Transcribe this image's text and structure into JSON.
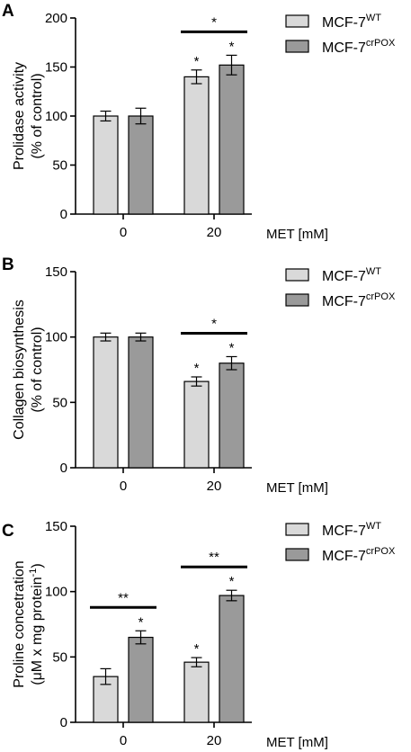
{
  "colors": {
    "wt": "#d9d9d9",
    "pox": "#9a9a9a",
    "edge": "#000000"
  },
  "chart_data": [
    {
      "type": "bar",
      "panel": "A",
      "ylabel": [
        "Prolidase activity",
        "(% of control)"
      ],
      "xlabel": "MET [mM]",
      "categories": [
        "0",
        "20"
      ],
      "ylim": [
        0,
        200
      ],
      "yticks": [
        0,
        50,
        100,
        150,
        200
      ],
      "series": [
        {
          "name": "MCF-7",
          "sup": "WT",
          "values": [
            100,
            140
          ],
          "errors": [
            5,
            7
          ],
          "stars": [
            "",
            "*"
          ]
        },
        {
          "name": "MCF-7",
          "sup": "crPOX",
          "values": [
            100,
            152
          ],
          "errors": [
            8,
            10
          ],
          "stars": [
            "",
            "*"
          ]
        }
      ],
      "brackets": [
        {
          "group": 1,
          "label": "*"
        }
      ]
    },
    {
      "type": "bar",
      "panel": "B",
      "ylabel": [
        "Collagen biosynthesis",
        "(% of control)"
      ],
      "xlabel": "MET [mM]",
      "categories": [
        "0",
        "20"
      ],
      "ylim": [
        0,
        150
      ],
      "yticks": [
        0,
        50,
        100,
        150
      ],
      "series": [
        {
          "name": "MCF-7",
          "sup": "WT",
          "values": [
            100,
            66
          ],
          "errors": [
            3,
            3.5
          ],
          "stars": [
            "",
            "*"
          ]
        },
        {
          "name": "MCF-7",
          "sup": "crPOX",
          "values": [
            100,
            80
          ],
          "errors": [
            3,
            5
          ],
          "stars": [
            "",
            "*"
          ]
        }
      ],
      "brackets": [
        {
          "group": 1,
          "label": "*"
        }
      ]
    },
    {
      "type": "bar",
      "panel": "C",
      "ylabel": [
        "Proline concetration",
        "(μM x mg protein",
        "-1",
        ")"
      ],
      "xlabel": "MET [mM]",
      "categories": [
        "0",
        "20"
      ],
      "ylim": [
        0,
        150
      ],
      "yticks": [
        0,
        50,
        100,
        150
      ],
      "series": [
        {
          "name": "MCF-7",
          "sup": "WT",
          "values": [
            35,
            46
          ],
          "errors": [
            6,
            3.5
          ],
          "stars": [
            "",
            "*"
          ]
        },
        {
          "name": "MCF-7",
          "sup": "crPOX",
          "values": [
            65,
            97
          ],
          "errors": [
            5,
            4
          ],
          "stars": [
            "*",
            "*"
          ]
        }
      ],
      "brackets": [
        {
          "group": 0,
          "label": "**"
        },
        {
          "group": 1,
          "label": "**"
        }
      ]
    }
  ]
}
